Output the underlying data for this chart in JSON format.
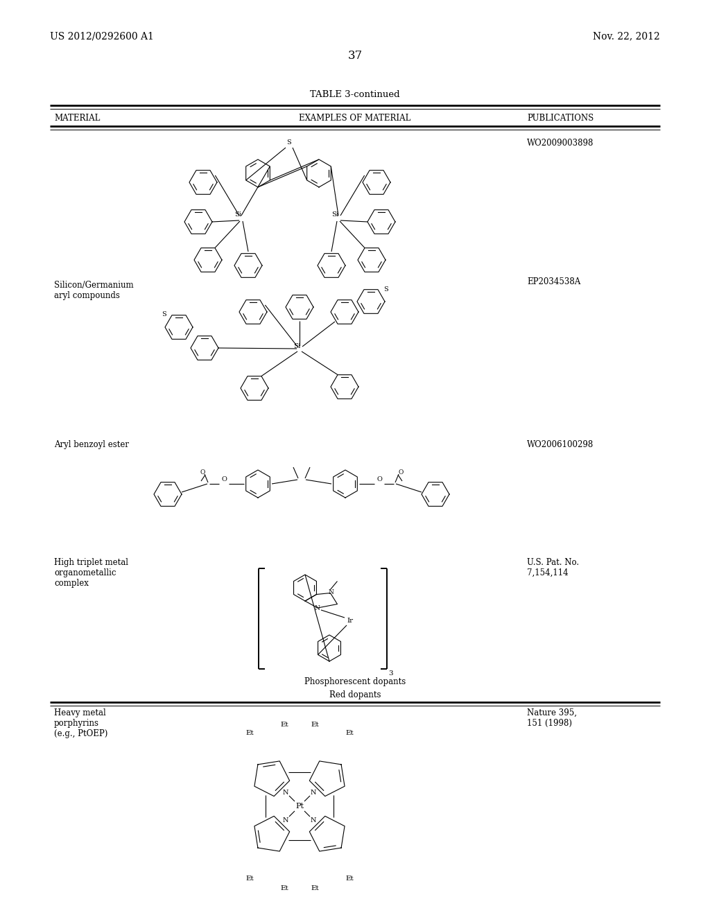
{
  "bg": "#ffffff",
  "header_left": "US 2012/0292600 A1",
  "header_right": "Nov. 22, 2012",
  "page_num": "37",
  "table_title": "TABLE 3-continued",
  "col1_header": "MATERIAL",
  "col2_header": "EXAMPLES OF MATERIAL",
  "col3_header": "PUBLICATIONS",
  "row1_pub": "WO2009003898",
  "row2_mat": "Silicon/Germanium\naryl compounds",
  "row2_pub": "EP2034538A",
  "row3_mat": "Aryl benzoyl ester",
  "row3_pub": "WO2006100298",
  "row4_mat": "High triplet metal\norganometallic\ncomplex",
  "row4_pub": "U.S. Pat. No.\n7,154,114",
  "footer1": "Phosphorescent dopants",
  "footer2": "Red dopants",
  "row5_mat": "Heavy metal\nporphyrins\n(e.g., PtOEP)",
  "row5_pub": "Nature 395,\n151 (1998)"
}
